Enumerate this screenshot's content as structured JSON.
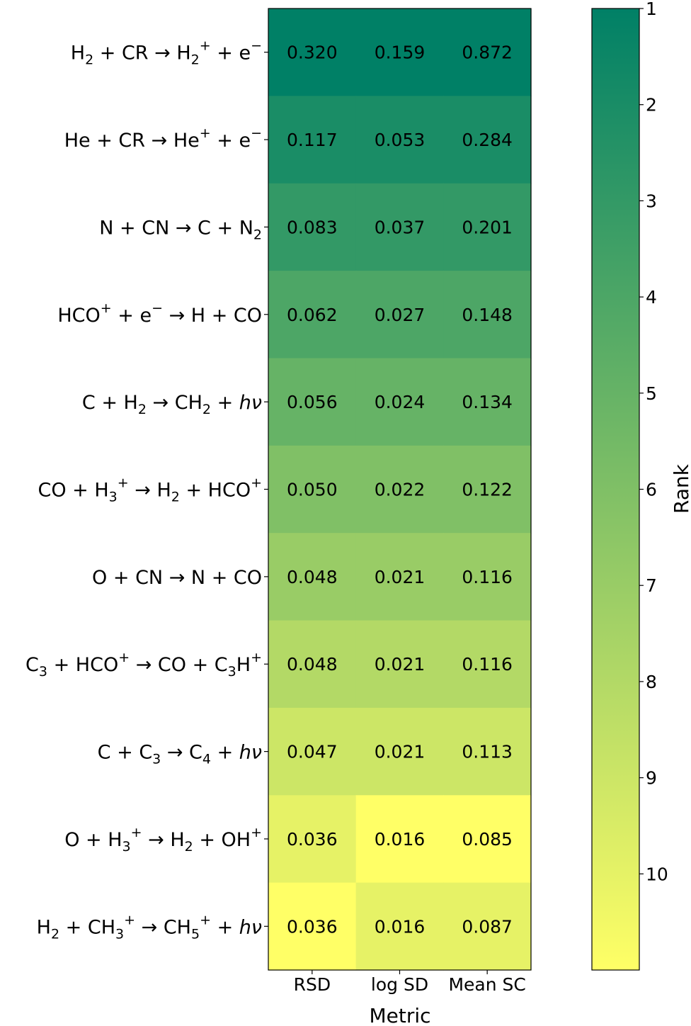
{
  "chart_data": {
    "type": "heatmap",
    "xlabel": "Metric",
    "columns": [
      "RSD",
      "log SD",
      "Mean SC"
    ],
    "rows": [
      {
        "parts": [
          [
            "H",
            "n"
          ],
          [
            "2",
            "sub"
          ],
          [
            " + CR → H",
            "n"
          ],
          [
            "2",
            "sub"
          ],
          [
            "+",
            "sup"
          ],
          [
            " + e",
            "n"
          ],
          [
            "−",
            "sup"
          ]
        ],
        "values": [
          "0.320",
          "0.159",
          "0.872"
        ],
        "ranks": [
          1,
          1,
          1
        ]
      },
      {
        "parts": [
          [
            "He + CR → He",
            "n"
          ],
          [
            "+",
            "sup"
          ],
          [
            " + e",
            "n"
          ],
          [
            "−",
            "sup"
          ]
        ],
        "values": [
          "0.117",
          "0.053",
          "0.284"
        ],
        "ranks": [
          2,
          2,
          2
        ]
      },
      {
        "parts": [
          [
            "N + CN → C + N",
            "n"
          ],
          [
            "2",
            "sub"
          ]
        ],
        "values": [
          "0.083",
          "0.037",
          "0.201"
        ],
        "ranks": [
          3,
          3,
          3
        ]
      },
      {
        "parts": [
          [
            "HCO",
            "n"
          ],
          [
            "+",
            "sup"
          ],
          [
            " + e",
            "n"
          ],
          [
            "−",
            "sup"
          ],
          [
            " → H + CO",
            "n"
          ]
        ],
        "values": [
          "0.062",
          "0.027",
          "0.148"
        ],
        "ranks": [
          4,
          4,
          4
        ]
      },
      {
        "parts": [
          [
            "C + H",
            "n"
          ],
          [
            "2",
            "sub"
          ],
          [
            " → CH",
            "n"
          ],
          [
            "2",
            "sub"
          ],
          [
            " + ",
            "n"
          ],
          [
            "hν",
            "it"
          ]
        ],
        "values": [
          "0.056",
          "0.024",
          "0.134"
        ],
        "ranks": [
          5,
          5,
          5
        ]
      },
      {
        "parts": [
          [
            "CO + H",
            "n"
          ],
          [
            "3",
            "sub"
          ],
          [
            "+",
            "sup"
          ],
          [
            " → H",
            "n"
          ],
          [
            "2",
            "sub"
          ],
          [
            " + HCO",
            "n"
          ],
          [
            "+",
            "sup"
          ]
        ],
        "values": [
          "0.050",
          "0.022",
          "0.122"
        ],
        "ranks": [
          6,
          6,
          6
        ]
      },
      {
        "parts": [
          [
            "O + CN → N + CO",
            "n"
          ]
        ],
        "values": [
          "0.048",
          "0.021",
          "0.116"
        ],
        "ranks": [
          7,
          7,
          7
        ]
      },
      {
        "parts": [
          [
            "C",
            "n"
          ],
          [
            "3",
            "sub"
          ],
          [
            " + HCO",
            "n"
          ],
          [
            "+",
            "sup"
          ],
          [
            " → CO + C",
            "n"
          ],
          [
            "3",
            "sub"
          ],
          [
            "H",
            "n"
          ],
          [
            "+",
            "sup"
          ]
        ],
        "values": [
          "0.048",
          "0.021",
          "0.116"
        ],
        "ranks": [
          8,
          8,
          8
        ]
      },
      {
        "parts": [
          [
            "C + C",
            "n"
          ],
          [
            "3",
            "sub"
          ],
          [
            " → C",
            "n"
          ],
          [
            "4",
            "sub"
          ],
          [
            " + ",
            "n"
          ],
          [
            "hν",
            "it"
          ]
        ],
        "values": [
          "0.047",
          "0.021",
          "0.113"
        ],
        "ranks": [
          9,
          9,
          9
        ]
      },
      {
        "parts": [
          [
            "O + H",
            "n"
          ],
          [
            "3",
            "sub"
          ],
          [
            "+",
            "sup"
          ],
          [
            " → H",
            "n"
          ],
          [
            "2",
            "sub"
          ],
          [
            " + OH",
            "n"
          ],
          [
            "+",
            "sup"
          ]
        ],
        "values": [
          "0.036",
          "0.016",
          "0.085"
        ],
        "ranks": [
          10,
          11,
          11
        ]
      },
      {
        "parts": [
          [
            "H",
            "n"
          ],
          [
            "2",
            "sub"
          ],
          [
            " + CH",
            "n"
          ],
          [
            "3",
            "sub"
          ],
          [
            "+",
            "sup"
          ],
          [
            " → CH",
            "n"
          ],
          [
            "5",
            "sub"
          ],
          [
            "+",
            "sup"
          ],
          [
            " + ",
            "n"
          ],
          [
            "hν",
            "it"
          ]
        ],
        "values": [
          "0.036",
          "0.016",
          "0.087"
        ],
        "ranks": [
          11,
          10,
          10
        ]
      }
    ],
    "colorbar": {
      "label": "Rank",
      "ticks": [
        1,
        2,
        3,
        4,
        5,
        6,
        7,
        8,
        9,
        10
      ],
      "range": [
        1,
        11
      ],
      "colormap": "summer_r",
      "color_low_rank": "#008066",
      "color_high_rank": "#ffff66"
    }
  }
}
